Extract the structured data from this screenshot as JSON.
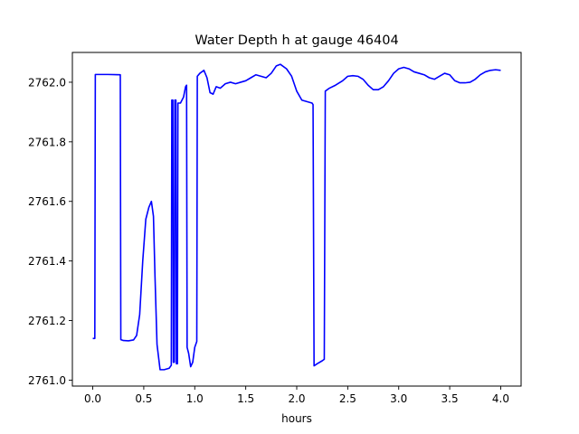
{
  "chart_data": {
    "type": "line",
    "title": "Water Depth h at gauge 46404",
    "xlabel": "hours",
    "ylabel": "",
    "xlim": [
      -0.2,
      4.2
    ],
    "ylim": [
      2760.98,
      2762.1
    ],
    "xticks": [
      0.0,
      0.5,
      1.0,
      1.5,
      2.0,
      2.5,
      3.0,
      3.5,
      4.0
    ],
    "xtick_labels": [
      "0.0",
      "0.5",
      "1.0",
      "1.5",
      "2.0",
      "2.5",
      "3.0",
      "3.5",
      "4.0"
    ],
    "yticks": [
      2761.0,
      2761.2,
      2761.4,
      2761.6,
      2761.8,
      2762.0
    ],
    "ytick_labels": [
      "2761.0",
      "2761.2",
      "2761.4",
      "2761.6",
      "2761.8",
      "2762.0"
    ],
    "grid": false,
    "legend": "none",
    "series": [
      {
        "color": "#0000ff",
        "points": [
          [
            0.0,
            2761.14
          ],
          [
            0.02,
            2761.14
          ],
          [
            0.025,
            2762.026
          ],
          [
            0.15,
            2762.026
          ],
          [
            0.27,
            2762.025
          ],
          [
            0.275,
            2761.136
          ],
          [
            0.3,
            2761.133
          ],
          [
            0.35,
            2761.132
          ],
          [
            0.4,
            2761.135
          ],
          [
            0.43,
            2761.15
          ],
          [
            0.46,
            2761.22
          ],
          [
            0.49,
            2761.4
          ],
          [
            0.52,
            2761.54
          ],
          [
            0.55,
            2761.58
          ],
          [
            0.575,
            2761.6
          ],
          [
            0.595,
            2761.55
          ],
          [
            0.61,
            2761.35
          ],
          [
            0.63,
            2761.12
          ],
          [
            0.66,
            2761.035
          ],
          [
            0.7,
            2761.035
          ],
          [
            0.75,
            2761.04
          ],
          [
            0.77,
            2761.05
          ],
          [
            0.775,
            2761.94
          ],
          [
            0.785,
            2761.94
          ],
          [
            0.79,
            2761.06
          ],
          [
            0.8,
            2761.06
          ],
          [
            0.805,
            2761.94
          ],
          [
            0.815,
            2761.94
          ],
          [
            0.82,
            2761.055
          ],
          [
            0.83,
            2761.055
          ],
          [
            0.835,
            2761.93
          ],
          [
            0.86,
            2761.93
          ],
          [
            0.89,
            2761.95
          ],
          [
            0.91,
            2761.985
          ],
          [
            0.92,
            2761.99
          ],
          [
            0.925,
            2761.11
          ],
          [
            0.94,
            2761.09
          ],
          [
            0.96,
            2761.045
          ],
          [
            0.98,
            2761.06
          ],
          [
            1.0,
            2761.11
          ],
          [
            1.02,
            2761.13
          ],
          [
            1.025,
            2762.02
          ],
          [
            1.05,
            2762.03
          ],
          [
            1.09,
            2762.04
          ],
          [
            1.12,
            2762.015
          ],
          [
            1.15,
            2761.965
          ],
          [
            1.18,
            2761.96
          ],
          [
            1.21,
            2761.985
          ],
          [
            1.25,
            2761.98
          ],
          [
            1.3,
            2761.995
          ],
          [
            1.35,
            2762.0
          ],
          [
            1.4,
            2761.995
          ],
          [
            1.45,
            2762.0
          ],
          [
            1.5,
            2762.005
          ],
          [
            1.55,
            2762.015
          ],
          [
            1.6,
            2762.025
          ],
          [
            1.65,
            2762.02
          ],
          [
            1.7,
            2762.015
          ],
          [
            1.75,
            2762.03
          ],
          [
            1.8,
            2762.055
          ],
          [
            1.84,
            2762.06
          ],
          [
            1.9,
            2762.045
          ],
          [
            1.95,
            2762.02
          ],
          [
            2.0,
            2761.97
          ],
          [
            2.05,
            2761.94
          ],
          [
            2.1,
            2761.935
          ],
          [
            2.15,
            2761.93
          ],
          [
            2.16,
            2761.925
          ],
          [
            2.17,
            2761.048
          ],
          [
            2.2,
            2761.055
          ],
          [
            2.25,
            2761.065
          ],
          [
            2.27,
            2761.07
          ],
          [
            2.28,
            2761.97
          ],
          [
            2.32,
            2761.98
          ],
          [
            2.38,
            2761.99
          ],
          [
            2.45,
            2762.005
          ],
          [
            2.5,
            2762.02
          ],
          [
            2.55,
            2762.022
          ],
          [
            2.6,
            2762.02
          ],
          [
            2.65,
            2762.01
          ],
          [
            2.7,
            2761.99
          ],
          [
            2.75,
            2761.975
          ],
          [
            2.8,
            2761.975
          ],
          [
            2.85,
            2761.985
          ],
          [
            2.9,
            2762.005
          ],
          [
            2.95,
            2762.03
          ],
          [
            3.0,
            2762.045
          ],
          [
            3.05,
            2762.05
          ],
          [
            3.1,
            2762.045
          ],
          [
            3.15,
            2762.035
          ],
          [
            3.2,
            2762.03
          ],
          [
            3.25,
            2762.025
          ],
          [
            3.3,
            2762.015
          ],
          [
            3.35,
            2762.01
          ],
          [
            3.4,
            2762.02
          ],
          [
            3.45,
            2762.03
          ],
          [
            3.5,
            2762.025
          ],
          [
            3.55,
            2762.005
          ],
          [
            3.6,
            2761.998
          ],
          [
            3.65,
            2761.998
          ],
          [
            3.7,
            2762.0
          ],
          [
            3.75,
            2762.01
          ],
          [
            3.8,
            2762.025
          ],
          [
            3.85,
            2762.035
          ],
          [
            3.9,
            2762.04
          ],
          [
            3.95,
            2762.042
          ],
          [
            4.0,
            2762.04
          ]
        ]
      }
    ]
  }
}
